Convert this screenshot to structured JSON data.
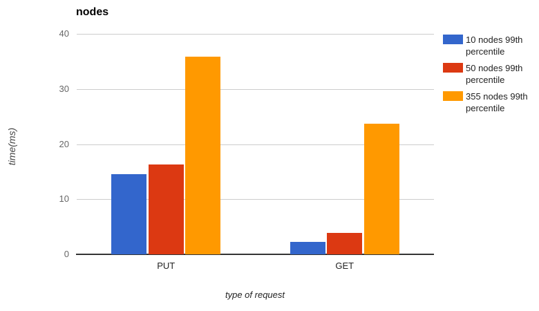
{
  "chart": {
    "title": "nodes",
    "y_axis_title": "time(ms)",
    "x_axis_title": "type of request"
  },
  "chart_data": {
    "type": "bar",
    "title": "nodes",
    "xlabel": "type of request",
    "ylabel": "time(ms)",
    "categories": [
      "PUT",
      "GET"
    ],
    "series": [
      {
        "name": "10 nodes 99th percentile",
        "color": "#3366CC",
        "values": [
          14.5,
          2.3
        ]
      },
      {
        "name": "50 nodes 99th percentile",
        "color": "#DC3912",
        "values": [
          16.3,
          3.9
        ]
      },
      {
        "name": "355 nodes 99th percentile",
        "color": "#FF9900",
        "values": [
          35.8,
          23.7
        ]
      }
    ],
    "ylim": [
      0,
      40
    ],
    "yticks": [
      0,
      10,
      20,
      30,
      40
    ],
    "grid": true,
    "legend_position": "right",
    "background_color": "#ffffff",
    "gridline_color": "#cccccc",
    "baseline_color": "#333333"
  }
}
